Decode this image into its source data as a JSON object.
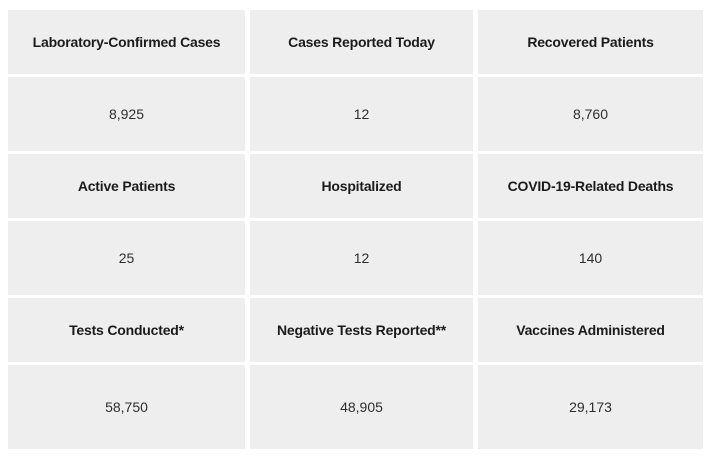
{
  "chart_data": {
    "type": "table",
    "title": "",
    "layout": {
      "columns": 3,
      "rows": 3,
      "grid": "label-row above value-row, repeated 3 times"
    },
    "stats": [
      {
        "label": "Laboratory-Confirmed Cases",
        "value": "8,925"
      },
      {
        "label": "Cases Reported Today",
        "value": "12"
      },
      {
        "label": "Recovered Patients",
        "value": "8,760"
      },
      {
        "label": "Active Patients",
        "value": "25"
      },
      {
        "label": "Hospitalized",
        "value": "12"
      },
      {
        "label": "COVID-19-Related Deaths",
        "value": "140"
      },
      {
        "label": "Tests Conducted*",
        "value": "58,750"
      },
      {
        "label": "Negative Tests Reported**",
        "value": "48,905"
      },
      {
        "label": "Vaccines Administered",
        "value": "29,173"
      }
    ]
  },
  "colors": {
    "page_background": "#ffffff",
    "cell_background": "#eeeeee",
    "label_text": "#1b1b1b",
    "value_text": "#2e2e2e"
  }
}
